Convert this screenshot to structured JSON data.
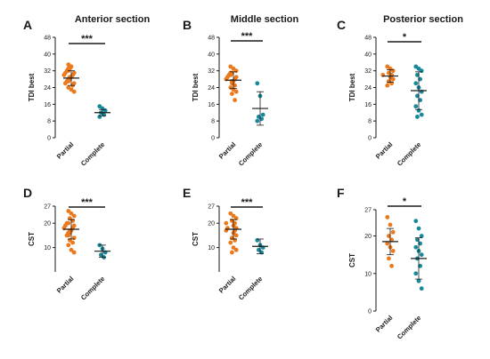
{
  "colors": {
    "partial": "#ec7a1c",
    "complete": "#17899a",
    "ink": "#1a1a1a"
  },
  "chart_data": [
    {
      "type": "scatter",
      "letter": "A",
      "title": "Anterior section",
      "ylabel": "TDI best",
      "ylim": [
        0,
        48
      ],
      "yticks": [
        "0",
        "8",
        "16",
        "24",
        "32",
        "40",
        "48"
      ],
      "categories": [
        "Partial",
        "Complete"
      ],
      "significance": "***",
      "series": [
        {
          "values": [
            35,
            34,
            34,
            33,
            33,
            32,
            32,
            31,
            31,
            30,
            30,
            29,
            29,
            28,
            28,
            27,
            27,
            26,
            26,
            25,
            24,
            23,
            22
          ],
          "mean": 28.5,
          "sd": 3.5
        },
        {
          "values": [
            15,
            14,
            13,
            12,
            11,
            10
          ],
          "mean": 12,
          "sd": 1.5
        }
      ]
    },
    {
      "type": "scatter",
      "letter": "B",
      "title": "Middle section",
      "ylabel": "TDI best",
      "ylim": [
        0,
        48
      ],
      "yticks": [
        "0",
        "8",
        "16",
        "24",
        "32",
        "40",
        "48"
      ],
      "categories": [
        "Partial",
        "Complete"
      ],
      "significance": "***",
      "series": [
        {
          "values": [
            34,
            33,
            32,
            31,
            31,
            30,
            30,
            29,
            29,
            28,
            28,
            27,
            27,
            26,
            25,
            24,
            23,
            22,
            21,
            18
          ],
          "mean": 27.5,
          "sd": 4
        },
        {
          "values": [
            26,
            20,
            11,
            10,
            9,
            8
          ],
          "mean": 14,
          "sd": 8
        }
      ]
    },
    {
      "type": "scatter",
      "letter": "C",
      "title": "Posterior section",
      "ylabel": "TDI best",
      "ylim": [
        0,
        48
      ],
      "yticks": [
        "0",
        "8",
        "16",
        "24",
        "32",
        "40",
        "48"
      ],
      "categories": [
        "Partial",
        "Complete"
      ],
      "significance": "*",
      "series": [
        {
          "values": [
            34,
            33,
            32,
            31,
            30,
            30,
            29,
            28,
            27,
            26,
            25
          ],
          "mean": 29.5,
          "sd": 3
        },
        {
          "values": [
            34,
            33,
            32,
            30,
            28,
            26,
            24,
            22,
            20,
            18,
            15,
            13,
            11,
            10
          ],
          "mean": 22.5,
          "sd": 9
        }
      ]
    },
    {
      "type": "scatter",
      "letter": "D",
      "title": "",
      "ylabel": "CST",
      "ylim": [
        0,
        27
      ],
      "yticks": [
        "10",
        "20",
        "27"
      ],
      "ytick_values": [
        10,
        20,
        27
      ],
      "categories": [
        "Partial",
        "Complete"
      ],
      "significance": "***",
      "series": [
        {
          "values": [
            25,
            24,
            23,
            22,
            21,
            20,
            20,
            19,
            19,
            18,
            18,
            17,
            17,
            16,
            16,
            15,
            15,
            14,
            13,
            12,
            11,
            9,
            8
          ],
          "mean": 17.5,
          "sd": 4
        },
        {
          "values": [
            11,
            9.5,
            8,
            7,
            6
          ],
          "mean": 8.5,
          "sd": 2.5
        }
      ]
    },
    {
      "type": "scatter",
      "letter": "E",
      "title": "",
      "ylabel": "CST",
      "ylim": [
        0,
        27
      ],
      "yticks": [
        "10",
        "20",
        "27"
      ],
      "ytick_values": [
        10,
        20,
        27
      ],
      "categories": [
        "Partial",
        "Complete"
      ],
      "significance": "***",
      "series": [
        {
          "values": [
            24,
            23,
            22,
            21,
            20,
            20,
            19,
            18,
            18,
            17,
            17,
            16,
            15,
            14,
            13,
            12,
            10,
            9,
            8
          ],
          "mean": 17.5,
          "sd": 4
        },
        {
          "values": [
            13,
            11,
            10,
            9,
            8
          ],
          "mean": 10.5,
          "sd": 3
        }
      ]
    },
    {
      "type": "scatter",
      "letter": "F",
      "title": "",
      "ylabel": "CST",
      "ylim": [
        0,
        27
      ],
      "yticks": [
        "0",
        "10",
        "20",
        "27"
      ],
      "ytick_values": [
        0,
        10,
        20,
        27
      ],
      "categories": [
        "Partial",
        "Complete"
      ],
      "significance": "*",
      "series": [
        {
          "values": [
            25,
            23,
            21,
            20,
            19,
            18,
            17,
            16,
            14,
            12
          ],
          "mean": 18.5,
          "sd": 3.5
        },
        {
          "values": [
            24,
            22,
            20,
            19,
            18,
            17,
            16,
            15,
            14,
            12,
            10,
            8,
            6
          ],
          "mean": 14,
          "sd": 5.5
        }
      ]
    }
  ]
}
